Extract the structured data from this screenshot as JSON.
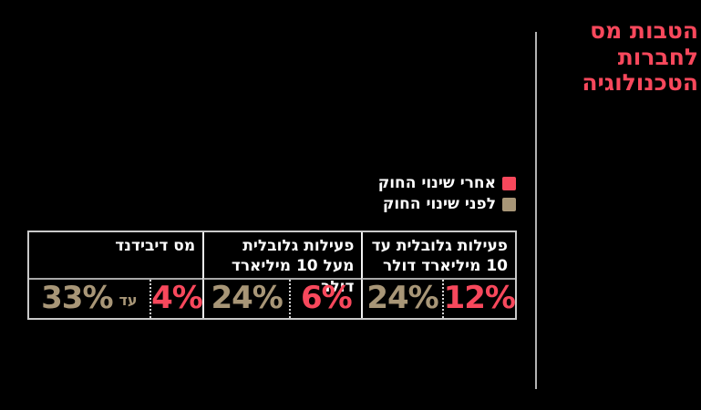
{
  "title": {
    "text": "הטבות מס לחברות הטכנולוגיה",
    "lines": [
      "הטבות מס",
      "לחברות",
      "הטכנולוגיה"
    ]
  },
  "colors": {
    "after_red": "#f8485c",
    "before_tan": "#a89677",
    "title": "#f8485c",
    "background": "#000000",
    "divider_line": "#b3b3b3"
  },
  "legend": {
    "items": [
      {
        "label": "אחרי שינוי החוק",
        "color": "#f8485c"
      },
      {
        "label": "לפני שינוי החוק",
        "color": "#a89677"
      }
    ]
  },
  "table": {
    "columns": [
      {
        "header": "פעילות גלובלית עד 10 מיליארד דולר",
        "before": "24%",
        "after": "12%"
      },
      {
        "header": "פעילות גלובלית מעל 10 מיליארד דולר",
        "before": "24%",
        "after": "6%"
      },
      {
        "header": "מס דיבידנד",
        "before": "33%",
        "before_prefix": "עד",
        "after": "4%"
      }
    ]
  },
  "chart_data": {
    "type": "table",
    "title": "הטבות מס לחברות הטכנולוגיה",
    "categories": [
      "פעילות גלובלית עד 10 מיליארד דולר",
      "פעילות גלובלית מעל 10 מיליארד דולר",
      "מס דיבידנד"
    ],
    "series": [
      {
        "name": "לפני שינוי החוק",
        "values": [
          "24%",
          "24%",
          "עד 33%"
        ]
      },
      {
        "name": "אחרי שינוי החוק",
        "values": [
          "12%",
          "6%",
          "4%"
        ]
      }
    ],
    "legend_position": "above-table-right",
    "notes": "Tax rates before vs after the law change; RTL Hebrew infographic on black background"
  }
}
